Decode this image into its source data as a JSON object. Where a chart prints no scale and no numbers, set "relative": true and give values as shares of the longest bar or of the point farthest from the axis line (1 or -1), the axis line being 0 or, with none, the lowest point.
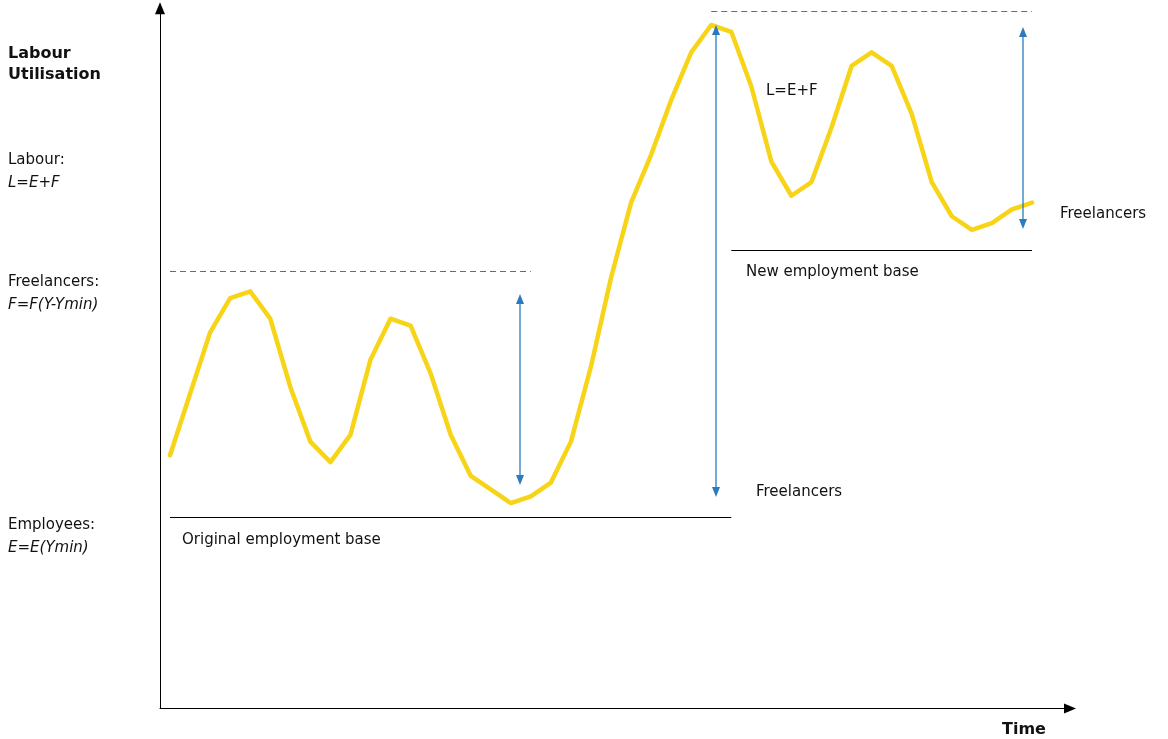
{
  "chart_data": {
    "type": "line",
    "relative": true,
    "ylabel": "Labour Utilisation",
    "xlabel": "Time",
    "categories": [
      null,
      null,
      null,
      null,
      null,
      null,
      null,
      null,
      null,
      null,
      null,
      null,
      null,
      null,
      null,
      null,
      null,
      null,
      null,
      null,
      null,
      null,
      null,
      null,
      null,
      null,
      null,
      null,
      null,
      null,
      null,
      null,
      null,
      null,
      null,
      null,
      null,
      null,
      null,
      null,
      null,
      null,
      null,
      null
    ],
    "series": [
      {
        "color": "#f7d417",
        "values": [
          0.37,
          0.46,
          0.55,
          0.6,
          0.61,
          0.57,
          0.47,
          0.39,
          0.36,
          0.4,
          0.51,
          0.57,
          0.56,
          0.49,
          0.4,
          0.34,
          0.32,
          0.3,
          0.31,
          0.33,
          0.39,
          0.5,
          0.63,
          0.74,
          0.81,
          0.89,
          0.96,
          1,
          0.99,
          0.91,
          0.8,
          0.75,
          0.77,
          0.85,
          0.94,
          0.96,
          0.94,
          0.87,
          0.77,
          0.72,
          0.7,
          0.71,
          0.73,
          0.74
        ]
      }
    ],
    "ref_lines": [
      {
        "axis": "y",
        "value": 0.28,
        "color": "#000000",
        "line_style": "solid"
      },
      {
        "axis": "y",
        "value": 0.67,
        "color": "#000000",
        "line_style": "solid"
      },
      {
        "axis": "y",
        "value": 0.64,
        "color": "#2a7bbf",
        "line_style": "dashed"
      },
      {
        "axis": "y",
        "value": 1.02,
        "color": "#2a7bbf",
        "line_style": "dashed"
      }
    ],
    "annotations": [
      "Labour:",
      "L=E+F",
      "Freelancers:",
      "F=F(Y-Ymin)",
      "Employees:",
      "E=E(Ymin)",
      "Original employment base",
      "Freelancers",
      "L=E+F",
      "New employment base",
      "Freelancers"
    ]
  }
}
